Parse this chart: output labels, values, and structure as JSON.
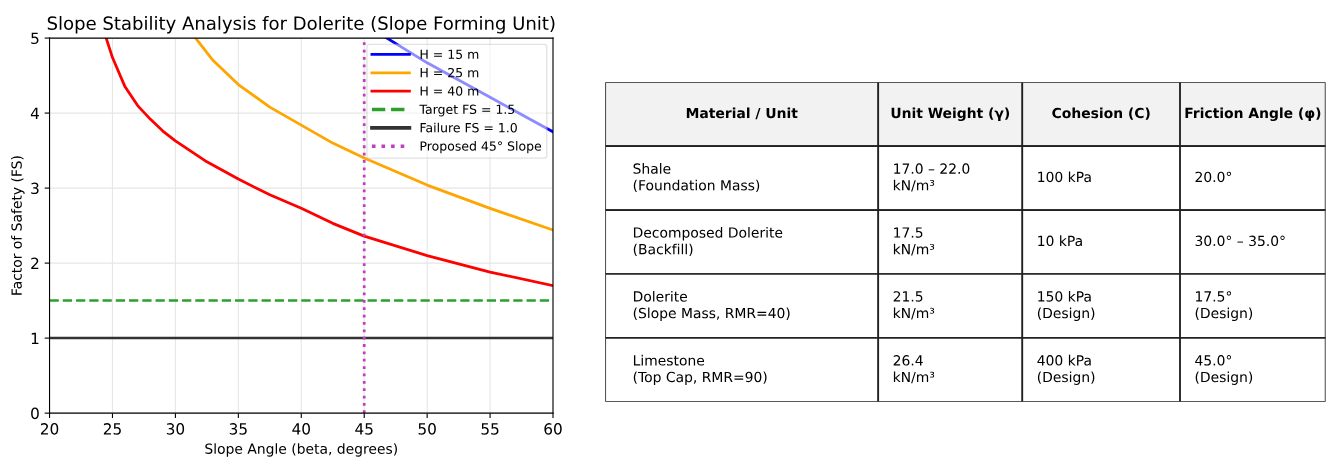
{
  "chart_data": [
    {
      "type": "line",
      "title": "Slope Stability Analysis for Dolerite (Slope Forming Unit)",
      "xlabel": "Slope Angle (beta, degrees)",
      "ylabel": "Factor of Safety (FS)",
      "xlim": [
        20,
        60
      ],
      "ylim": [
        0,
        5
      ],
      "xticks": [
        20,
        25,
        30,
        35,
        40,
        45,
        50,
        55,
        60
      ],
      "yticks": [
        0,
        1,
        2,
        3,
        4,
        5
      ],
      "grid": true,
      "legend": "top right",
      "line_style": "solid",
      "series": [
        {
          "name": "H = 15 m",
          "color": "#0000ff",
          "x": [
            46.8,
            50,
            55,
            60
          ],
          "values": [
            5.0,
            4.67,
            4.21,
            3.75
          ]
        },
        {
          "name": "H = 25 m",
          "color": "#ffa500",
          "x": [
            31.6,
            33,
            35,
            37.5,
            40,
            42.5,
            45,
            50,
            55,
            60
          ],
          "values": [
            5.0,
            4.7,
            4.38,
            4.08,
            3.84,
            3.6,
            3.4,
            3.04,
            2.73,
            2.44
          ]
        },
        {
          "name": "H = 40 m",
          "color": "#ff0000",
          "x": [
            24.5,
            25,
            26,
            27,
            28,
            29,
            30,
            32.5,
            35,
            37.5,
            40,
            42.5,
            45,
            50,
            55,
            60
          ],
          "values": [
            5.0,
            4.74,
            4.35,
            4.1,
            3.92,
            3.76,
            3.63,
            3.35,
            3.12,
            2.91,
            2.73,
            2.53,
            2.36,
            2.1,
            1.88,
            1.7
          ]
        }
      ],
      "ref_lines": [
        {
          "axis": "y",
          "value": 1.5,
          "label": "Target FS = 1.5",
          "color": "#2ca02c",
          "line_style": "dashed"
        },
        {
          "axis": "y",
          "value": 1.0,
          "label": "Failure FS = 1.0",
          "color": "#333333",
          "line_style": "solid"
        },
        {
          "axis": "x",
          "value": 45,
          "label": "Proposed 45° Slope",
          "color": "#bf40bf",
          "line_style": "dotted"
        }
      ]
    },
    {
      "type": "other",
      "categories": [
        "Material / Unit",
        "Unit Weight (γ)",
        "Cohesion (C)",
        "Friction Angle (φ)"
      ],
      "cell_labels": [
        [
          "Shale\n(Foundation Mass)",
          "17.0 – 22.0\nkN/m³",
          "100 kPa",
          "20.0°"
        ],
        [
          "Decomposed Dolerite\n(Backfill)",
          "17.5\nkN/m³",
          "10 kPa",
          "30.0° – 35.0°"
        ],
        [
          "Dolerite\n(Slope Mass, RMR=40)",
          "21.5\nkN/m³",
          "150 kPa\n(Design)",
          "17.5°\n(Design)"
        ],
        [
          "Limestone\n(Top Cap, RMR=90)",
          "26.4\nkN/m³",
          "400 kPa\n(Design)",
          "45.0°\n(Design)"
        ]
      ]
    }
  ]
}
